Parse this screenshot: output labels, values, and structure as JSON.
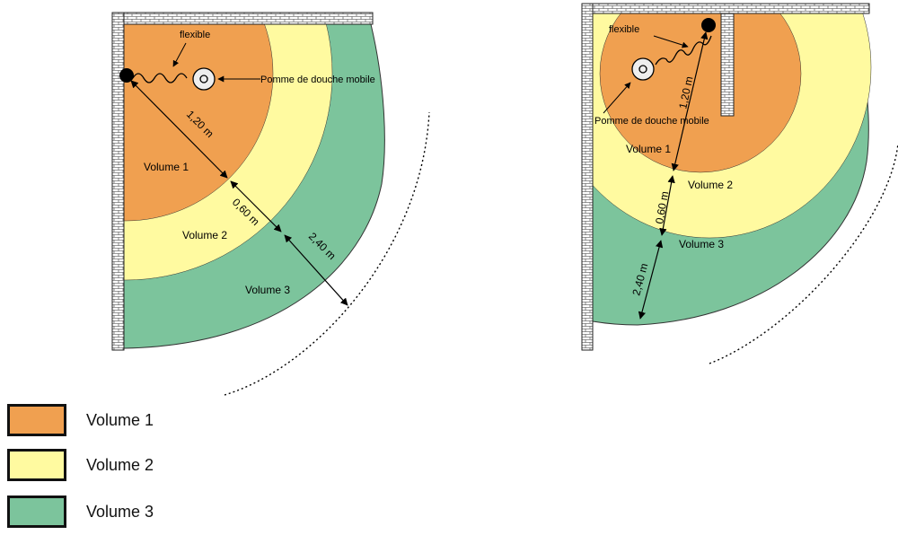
{
  "colors": {
    "volume1": "#F0A050",
    "volume2": "#FFFAA0",
    "volume3": "#7CC49C",
    "wall_fill": "#ffffff",
    "wall_line": "#222222"
  },
  "left_diagram": {
    "hose_label": "flexible",
    "shower_head_label": "Pomme de douche mobile",
    "dim1": "1,20 m",
    "dim2": "0,60 m",
    "dim3": "2,40 m",
    "zone1": "Volume 1",
    "zone2": "Volume 2",
    "zone3": "Volume 3"
  },
  "right_diagram": {
    "hose_label": "flexible",
    "shower_head_label": "Pomme de douche mobile",
    "dim1": "1,20 m",
    "dim2": "0,60 m",
    "dim3": "2,40 m",
    "zone1": "Volume 1",
    "zone2": "Volume 2",
    "zone3": "Volume 3"
  },
  "legend": [
    {
      "label": "Volume 1",
      "color_key": "volume1"
    },
    {
      "label": "Volume 2",
      "color_key": "volume2"
    },
    {
      "label": "Volume 3",
      "color_key": "volume3"
    }
  ]
}
